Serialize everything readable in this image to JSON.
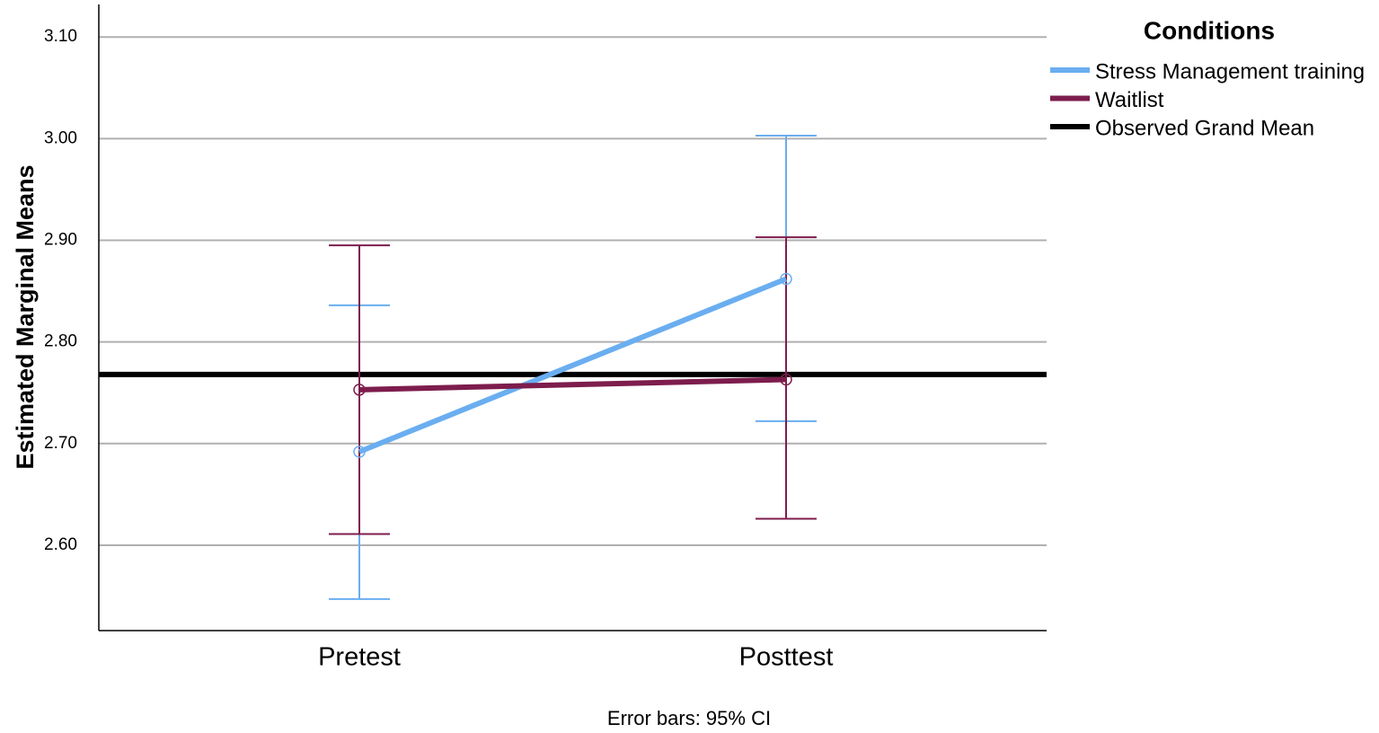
{
  "chart_data": {
    "type": "line",
    "y_label": "Estimated Marginal Means",
    "note": "Error bars: 95% CI",
    "legend_title": "Conditions",
    "categories": [
      "Pretest",
      "Posttest"
    ],
    "series": [
      {
        "name": "Stress Management training",
        "color": "#6aaef0",
        "values": [
          2.692,
          2.862
        ],
        "lower": [
          2.547,
          2.722
        ],
        "upper": [
          2.836,
          3.003
        ]
      },
      {
        "name": "Waitlist",
        "color": "#7d1d4d",
        "values": [
          2.753,
          2.763
        ],
        "lower": [
          2.611,
          2.626
        ],
        "upper": [
          2.895,
          2.903
        ]
      }
    ],
    "reference_line": {
      "name": "Observed Grand Mean",
      "color": "#000000",
      "value": 2.768
    },
    "ylim": [
      2.516,
      3.132
    ],
    "yticks": [
      {
        "value": 2.6,
        "label": "2.60"
      },
      {
        "value": 2.7,
        "label": "2.70"
      },
      {
        "value": 2.8,
        "label": "2.80"
      },
      {
        "value": 2.9,
        "label": "2.90"
      },
      {
        "value": 3.0,
        "label": "3.00"
      },
      {
        "value": 3.1,
        "label": "3.10"
      }
    ],
    "grid": true,
    "legend_position": "top-right"
  }
}
